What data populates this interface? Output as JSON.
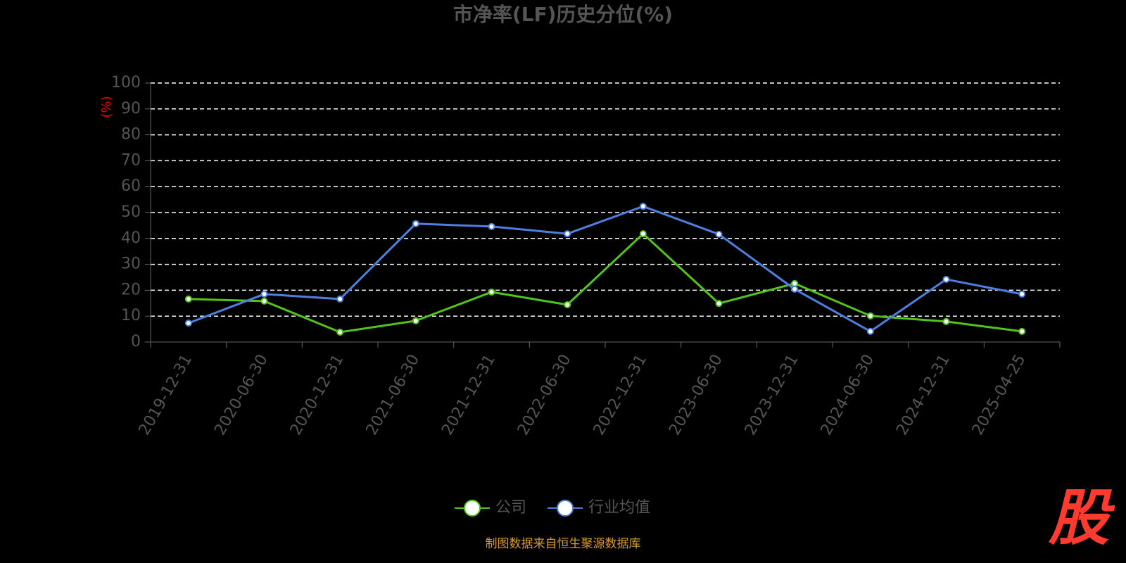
{
  "chart_data": {
    "type": "line",
    "title": "市净率(LF)历史分位(%)",
    "y_label": "(%)",
    "categories": [
      "2019-12-31",
      "2020-06-30",
      "2020-12-31",
      "2021-06-30",
      "2021-12-31",
      "2022-06-30",
      "2022-12-31",
      "2023-06-30",
      "2023-12-31",
      "2024-06-30",
      "2024-12-31",
      "2025-04-25"
    ],
    "series": [
      {
        "name": "公司",
        "color": "#52c41a",
        "values": [
          16.6,
          15.8,
          3.8,
          8.2,
          19.3,
          14.4,
          41.8,
          14.9,
          22.6,
          10.1,
          7.9,
          4.1
        ]
      },
      {
        "name": "行业均值",
        "color": "#4e7fe0",
        "values": [
          7.3,
          18.5,
          16.6,
          45.7,
          44.6,
          41.8,
          52.4,
          41.6,
          20.4,
          4.1,
          24.2,
          18.5
        ]
      }
    ],
    "ylim": [
      0,
      100
    ],
    "yticks": [
      0,
      10,
      20,
      30,
      40,
      50,
      60,
      70,
      80,
      90,
      100
    ],
    "grid": true,
    "legend": "bottom",
    "source": "制图数据来自恒生聚源数据库",
    "watermark": "股"
  }
}
